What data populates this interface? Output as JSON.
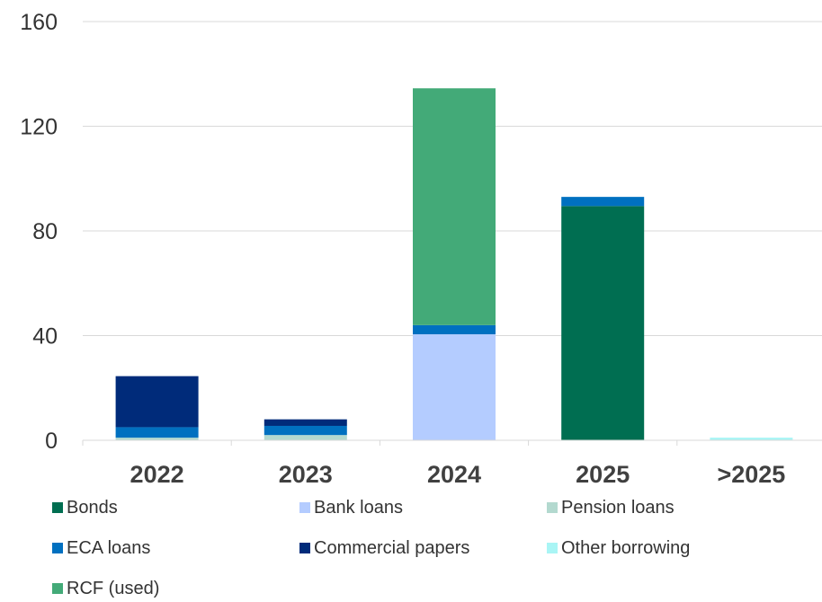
{
  "chart_data": {
    "type": "bar",
    "stacked": true,
    "categories": [
      "2022",
      "2023",
      "2024",
      "2025",
      ">2025"
    ],
    "series": [
      {
        "name": "Bonds",
        "color": "#006E51",
        "values": [
          0,
          0,
          0,
          89.5,
          0
        ]
      },
      {
        "name": "Bank loans",
        "color": "#B4CCFF",
        "values": [
          0,
          0,
          40.5,
          0,
          0
        ]
      },
      {
        "name": "Pension loans",
        "color": "#B3D9CF",
        "values": [
          1,
          2,
          0,
          0,
          0
        ]
      },
      {
        "name": "ECA loans",
        "color": "#0070C0",
        "values": [
          4,
          3.5,
          3.5,
          3.5,
          0
        ]
      },
      {
        "name": "Commercial papers",
        "color": "#002B7A",
        "values": [
          19.5,
          2.5,
          0,
          0,
          0
        ]
      },
      {
        "name": "Other borrowing",
        "color": "#A9F5F5",
        "values": [
          0,
          0,
          0,
          0,
          1
        ]
      },
      {
        "name": "RCF (used)",
        "color": "#43AA78",
        "values": [
          0,
          0,
          90.5,
          0,
          0
        ]
      }
    ],
    "yticks": [
      0,
      40,
      80,
      120,
      160
    ],
    "ylim": [
      0,
      160
    ],
    "grid": true,
    "legend_position": "bottom"
  }
}
